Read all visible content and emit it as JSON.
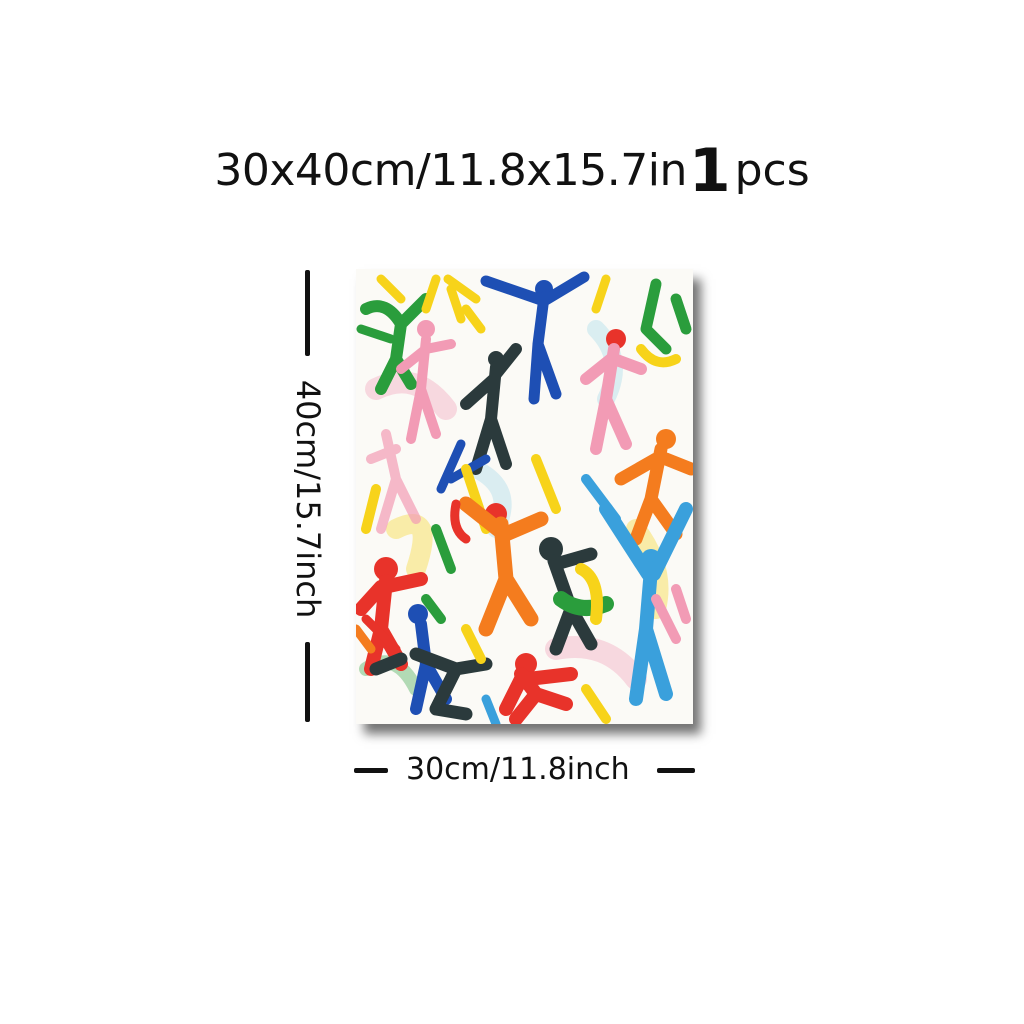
{
  "title": {
    "size_text": "30x40cm/11.8x15.7in",
    "quantity_number": "1",
    "quantity_unit": "pcs"
  },
  "dimensions": {
    "height_label": "40cm/15.7inch",
    "width_label": "30cm/11.8inch"
  },
  "artwork": {
    "description_colors": [
      "#1e4fb4",
      "#e8332a",
      "#f47c1e",
      "#f7d31a",
      "#2a9d3c",
      "#f29bb5",
      "#2b3a3c",
      "#3aa0dc"
    ]
  }
}
